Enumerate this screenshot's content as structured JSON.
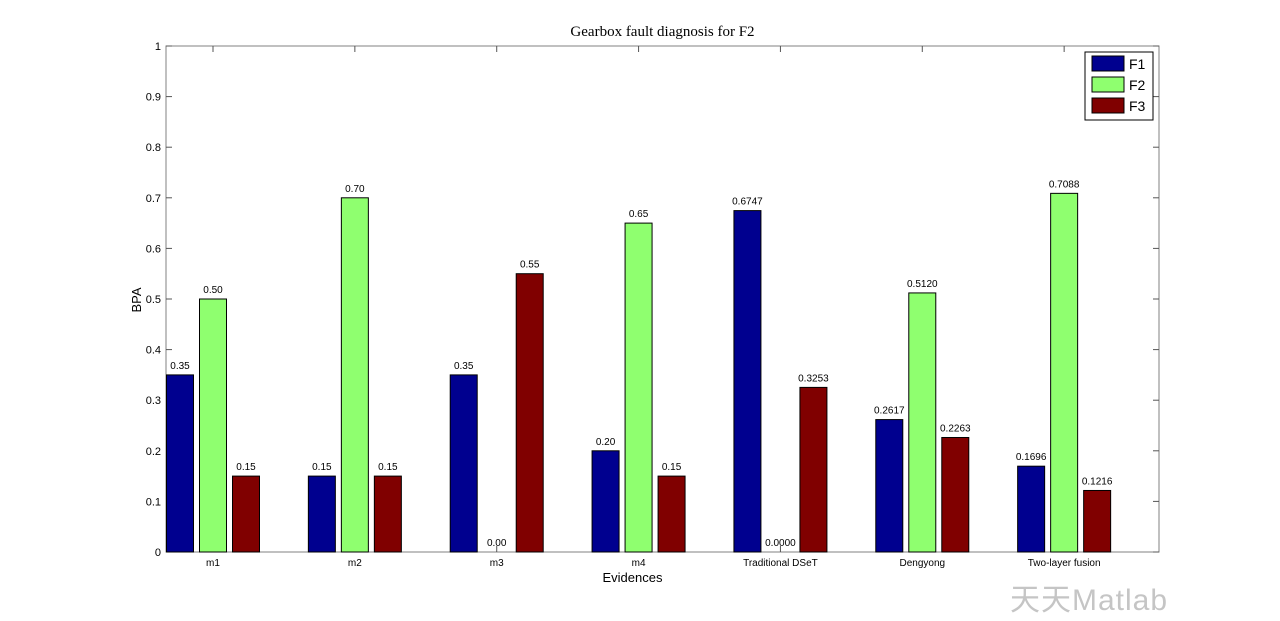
{
  "chart_data": {
    "type": "bar",
    "title": "Gearbox fault diagnosis for F2",
    "xlabel": "Evidences",
    "ylabel": "BPA",
    "ylim": [
      0,
      1
    ],
    "yticks": [
      "0",
      "0.1",
      "0.2",
      "0.3",
      "0.4",
      "0.5",
      "0.6",
      "0.7",
      "0.8",
      "0.9",
      "1"
    ],
    "categories": [
      "m1",
      "m2",
      "m3",
      "m4",
      "Traditional DSeT",
      "Dengyong",
      "Two-layer fusion"
    ],
    "series": [
      {
        "name": "F1",
        "color": "#00008f",
        "values": [
          0.35,
          0.15,
          0.35,
          0.2,
          0.6747,
          0.2617,
          0.1696
        ],
        "labels": [
          "0.35",
          "0.15",
          "0.35",
          "0.20",
          "0.6747",
          "0.2617",
          "0.1696"
        ]
      },
      {
        "name": "F2",
        "color": "#8fff6f",
        "values": [
          0.5,
          0.7,
          0.0,
          0.65,
          0.0,
          0.512,
          0.7088
        ],
        "labels": [
          "0.50",
          "0.70",
          "0.00",
          "0.65",
          "0.0000",
          "0.5120",
          "0.7088"
        ]
      },
      {
        "name": "F3",
        "color": "#800000",
        "values": [
          0.15,
          0.15,
          0.55,
          0.15,
          0.3253,
          0.2263,
          0.1216
        ],
        "labels": [
          "0.15",
          "0.15",
          "0.55",
          "0.15",
          "0.3253",
          "0.2263",
          "0.1216"
        ]
      }
    ],
    "legend_position": "top-right",
    "grid": false
  },
  "watermark": "天天Matlab"
}
